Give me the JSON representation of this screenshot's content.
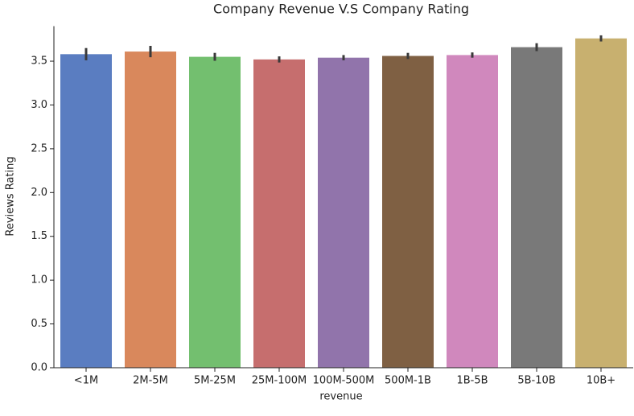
{
  "chart_data": {
    "type": "bar",
    "title": "Company Revenue V.S Company Rating",
    "xlabel": "revenue",
    "ylabel": "Reviews Rating",
    "categories": [
      "<1M",
      "2M-5M",
      "5M-25M",
      "25M-100M",
      "100M-500M",
      "500M-1B",
      "1B-5B",
      "5B-10B",
      "10B+"
    ],
    "values": [
      3.58,
      3.61,
      3.55,
      3.52,
      3.54,
      3.56,
      3.57,
      3.66,
      3.76
    ],
    "errors": [
      0.07,
      0.065,
      0.045,
      0.035,
      0.03,
      0.035,
      0.03,
      0.045,
      0.035
    ],
    "colors": [
      "#5a7dc1",
      "#d9885c",
      "#73bf6f",
      "#c66e6e",
      "#9174ab",
      "#7f6043",
      "#d088bd",
      "#797979",
      "#c8b06f"
    ],
    "error_color": "#3a3a3a",
    "ylim": [
      0,
      3.9
    ],
    "yticks": [
      {
        "value": 0,
        "label": "0.0"
      },
      {
        "value": 0.5,
        "label": "0.5"
      },
      {
        "value": 1,
        "label": "1.0"
      },
      {
        "value": 1.5,
        "label": "1.5"
      },
      {
        "value": 2,
        "label": "2.0"
      },
      {
        "value": 2.5,
        "label": "2.5"
      },
      {
        "value": 3,
        "label": "3.0"
      },
      {
        "value": 3.5,
        "label": "3.5"
      }
    ]
  }
}
